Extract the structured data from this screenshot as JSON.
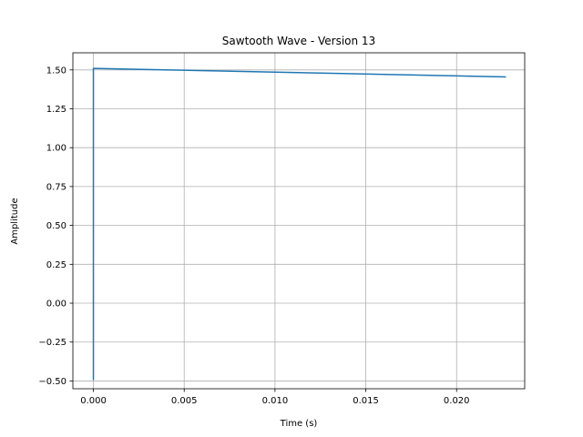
{
  "chart_data": {
    "type": "line",
    "title": "Sawtooth Wave - Version 13",
    "xlabel": "Time (s)",
    "ylabel": "Amplitude",
    "xlim": [
      -0.00113,
      0.02375
    ],
    "ylim": [
      -0.5502,
      1.61
    ],
    "x_ticks": [
      0.0,
      0.005,
      0.01,
      0.015,
      0.02
    ],
    "x_tick_labels": [
      "0.000",
      "0.005",
      "0.010",
      "0.015",
      "0.020"
    ],
    "y_ticks": [
      -0.5,
      -0.25,
      0.0,
      0.25,
      0.5,
      0.75,
      1.0,
      1.25,
      1.5
    ],
    "y_tick_labels": [
      "−0.50",
      "−0.25",
      "0.00",
      "0.25",
      "0.50",
      "0.75",
      "1.00",
      "1.25",
      "1.50"
    ],
    "grid": true,
    "series": [
      {
        "color": "#1f77b4",
        "x": [
          0.0,
          0.0,
          0.02268
        ],
        "y": [
          -0.49,
          1.51,
          1.455
        ]
      }
    ]
  }
}
